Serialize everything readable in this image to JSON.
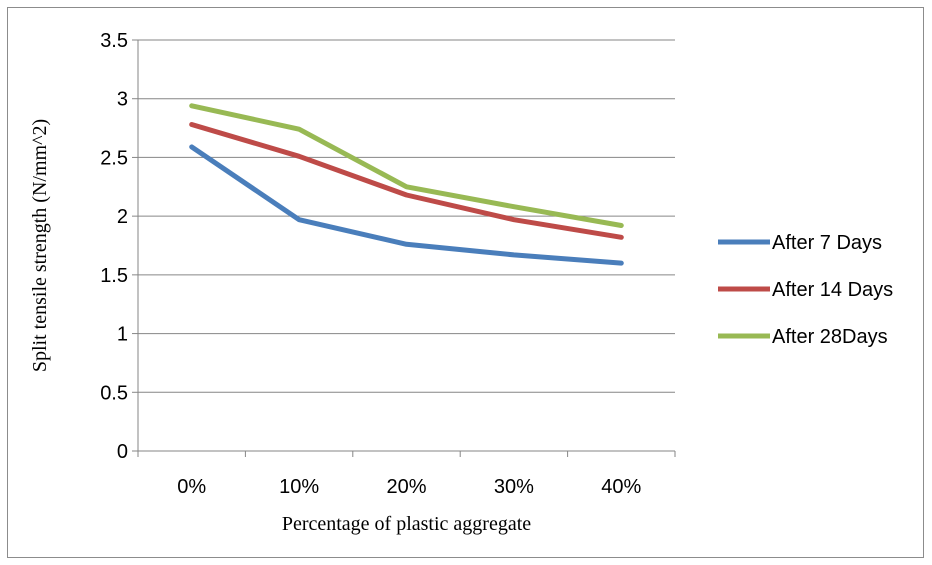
{
  "chart_data": {
    "type": "line",
    "title": "",
    "xlabel": "Percentage of plastic aggregate",
    "ylabel": "Split tensile strength (N/mm^2)",
    "categories": [
      "0%",
      "10%",
      "20%",
      "30%",
      "40%"
    ],
    "ylim": [
      0,
      3.5
    ],
    "yticks": [
      "0",
      "0.5",
      "1",
      "1.5",
      "2",
      "2.5",
      "3",
      "3.5"
    ],
    "grid": true,
    "legend_position": "right",
    "series": [
      {
        "name": "After 7 Days",
        "color": "#4a7ebb",
        "values": [
          2.59,
          1.97,
          1.76,
          1.67,
          1.6
        ]
      },
      {
        "name": "After 14 Days",
        "color": "#be4b48",
        "values": [
          2.78,
          2.51,
          2.18,
          1.97,
          1.82
        ]
      },
      {
        "name": "After 28Days",
        "color": "#98b954",
        "values": [
          2.94,
          2.74,
          2.25,
          2.08,
          1.92
        ]
      }
    ]
  }
}
